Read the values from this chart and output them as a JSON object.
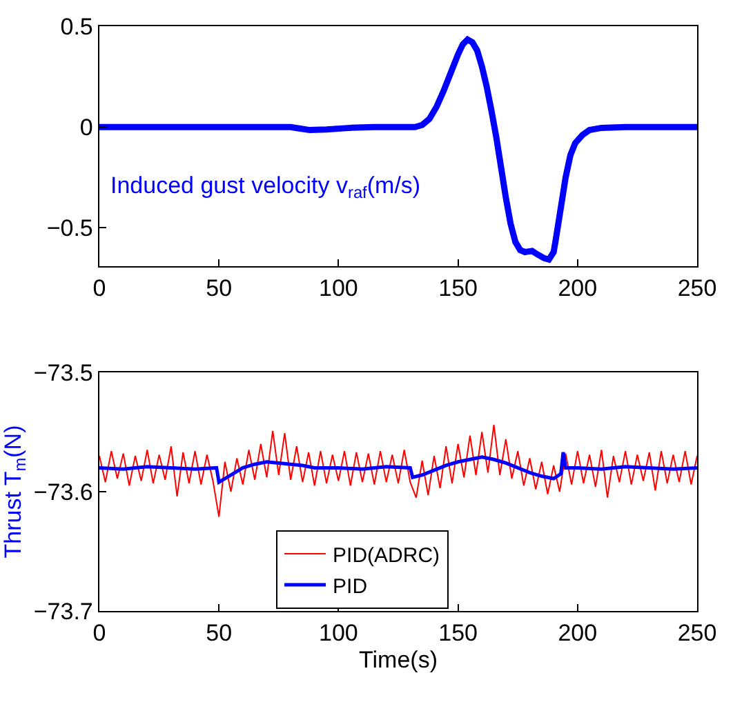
{
  "chart_data": [
    {
      "type": "line",
      "xlim": [
        0,
        250
      ],
      "xticks": [
        0,
        50,
        100,
        150,
        200,
        250
      ],
      "ylim": [
        -0.69,
        0.5
      ],
      "yticks": [
        -0.5,
        0,
        0.5
      ],
      "annotations": [
        "Induced gust velocity v$_{raf}$(m/s)"
      ],
      "x": [
        0,
        80,
        84,
        88,
        95,
        105,
        115,
        132,
        135,
        138,
        141,
        144,
        147,
        150,
        152,
        154,
        156,
        158,
        160,
        162,
        164,
        166,
        168,
        170,
        172,
        174,
        176,
        178,
        181,
        183,
        186,
        188,
        190,
        191,
        193,
        195,
        197,
        199,
        202,
        205,
        210,
        220,
        250
      ],
      "series": [
        {
          "color": "#0000ff",
          "values": [
            0,
            0,
            -0.008,
            -0.015,
            -0.012,
            -0.004,
            0,
            0,
            0.01,
            0.04,
            0.1,
            0.18,
            0.27,
            0.36,
            0.41,
            0.434,
            0.42,
            0.38,
            0.3,
            0.2,
            0.08,
            -0.05,
            -0.2,
            -0.35,
            -0.48,
            -0.57,
            -0.61,
            -0.62,
            -0.615,
            -0.63,
            -0.65,
            -0.657,
            -0.62,
            -0.55,
            -0.4,
            -0.25,
            -0.14,
            -0.08,
            -0.04,
            -0.015,
            -0.004,
            0,
            0
          ]
        }
      ]
    },
    {
      "type": "line",
      "xlim": [
        0,
        250
      ],
      "xticks": [
        0,
        50,
        100,
        150,
        200,
        250
      ],
      "ylim": [
        -73.7,
        -73.5
      ],
      "yticks": [
        -73.5,
        -73.6,
        -73.7
      ],
      "xlabel": "Time(s)",
      "ylabel": "Thrust T$_{m}$(N)",
      "legend": "bottom",
      "series": [
        {
          "name": "PID(ADRC)",
          "color": "#ff0000",
          "x": [
            0,
            2.5,
            5,
            7.5,
            10,
            12.5,
            15,
            17.5,
            20,
            22.5,
            25,
            27.5,
            30,
            32.5,
            35,
            37.5,
            40,
            42.5,
            45,
            47.5,
            50,
            52.5,
            55,
            57.5,
            60,
            62.5,
            65,
            67.5,
            70,
            72.5,
            75,
            77.5,
            80,
            82.5,
            85,
            87.5,
            90,
            92.5,
            95,
            97.5,
            100,
            102.5,
            105,
            107.5,
            110,
            112.5,
            115,
            117.5,
            120,
            122.5,
            125,
            127.5,
            130,
            132.5,
            135,
            137.5,
            140,
            142.5,
            145,
            147.5,
            150,
            152.5,
            155,
            157.5,
            160,
            162.5,
            165,
            167.5,
            170,
            172.5,
            175,
            177.5,
            180,
            182.5,
            185,
            187.5,
            190,
            192.5,
            195,
            197.5,
            200,
            202.5,
            205,
            207.5,
            210,
            212.5,
            215,
            217.5,
            220,
            222.5,
            225,
            227.5,
            230,
            232.5,
            235,
            237.5,
            240,
            242.5,
            245,
            247.5,
            250
          ],
          "values": [
            -73.57,
            -73.592,
            -73.566,
            -73.589,
            -73.568,
            -73.595,
            -73.57,
            -73.591,
            -73.565,
            -73.593,
            -73.569,
            -73.59,
            -73.562,
            -73.604,
            -73.567,
            -73.593,
            -73.566,
            -73.594,
            -73.569,
            -73.591,
            -73.621,
            -73.575,
            -73.6,
            -73.572,
            -73.594,
            -73.565,
            -73.59,
            -73.56,
            -73.588,
            -73.549,
            -73.586,
            -73.551,
            -73.59,
            -73.562,
            -73.592,
            -73.567,
            -73.595,
            -73.566,
            -73.593,
            -73.569,
            -73.591,
            -73.566,
            -73.595,
            -73.567,
            -73.592,
            -73.568,
            -73.594,
            -73.566,
            -73.592,
            -73.569,
            -73.593,
            -73.565,
            -73.592,
            -73.605,
            -73.574,
            -73.603,
            -73.57,
            -73.597,
            -73.562,
            -73.593,
            -73.56,
            -73.588,
            -73.553,
            -73.586,
            -73.55,
            -73.584,
            -73.544,
            -73.586,
            -73.556,
            -73.589,
            -73.566,
            -73.595,
            -73.572,
            -73.598,
            -73.575,
            -73.602,
            -73.578,
            -73.6,
            -73.568,
            -73.594,
            -73.566,
            -73.593,
            -73.569,
            -73.596,
            -73.565,
            -73.605,
            -73.57,
            -73.592,
            -73.566,
            -73.594,
            -73.569,
            -73.591,
            -73.567,
            -73.599,
            -73.566,
            -73.593,
            -73.569,
            -73.592,
            -73.566,
            -73.594,
            -73.57
          ]
        },
        {
          "name": "PID",
          "color": "#0000ff",
          "x": [
            0,
            10,
            20,
            30,
            40,
            49,
            50,
            55,
            60,
            65,
            70,
            75,
            80,
            85,
            90,
            100,
            110,
            120,
            130,
            131,
            135,
            140,
            145,
            150,
            155,
            160,
            165,
            170,
            175,
            180,
            185,
            190,
            193,
            194,
            195,
            200,
            210,
            220,
            230,
            240,
            250
          ],
          "values": [
            -73.58,
            -73.581,
            -73.579,
            -73.58,
            -73.581,
            -73.58,
            -73.592,
            -73.586,
            -73.58,
            -73.577,
            -73.575,
            -73.576,
            -73.577,
            -73.578,
            -73.58,
            -73.58,
            -73.581,
            -73.579,
            -73.58,
            -73.588,
            -73.586,
            -73.582,
            -73.578,
            -73.575,
            -73.573,
            -73.571,
            -73.573,
            -73.576,
            -73.58,
            -73.584,
            -73.587,
            -73.589,
            -73.585,
            -73.567,
            -73.58,
            -73.58,
            -73.581,
            -73.579,
            -73.58,
            -73.581,
            -73.58
          ]
        }
      ]
    }
  ]
}
